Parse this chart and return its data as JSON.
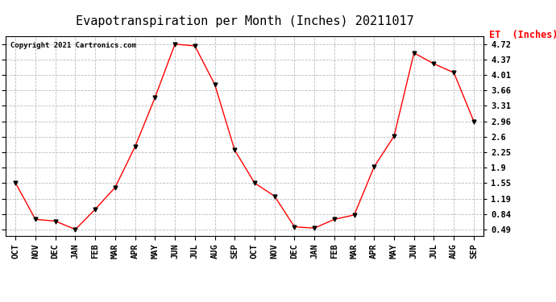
{
  "title": "Evapotranspiration per Month (Inches) 20211017",
  "copyright_text": "Copyright 2021 Cartronics.com",
  "legend_label": "ET  (Inches)",
  "x_labels": [
    "OCT",
    "NOV",
    "DEC",
    "JAN",
    "FEB",
    "MAR",
    "APR",
    "MAY",
    "JUN",
    "JUL",
    "AUG",
    "SEP",
    "OCT",
    "NOV",
    "DEC",
    "JAN",
    "FEB",
    "MAR",
    "APR",
    "MAY",
    "JUN",
    "JUL",
    "AUG",
    "SEP"
  ],
  "y_values": [
    1.55,
    0.72,
    0.68,
    0.49,
    0.95,
    1.45,
    2.38,
    3.5,
    4.72,
    4.68,
    3.8,
    2.3,
    1.55,
    1.25,
    0.55,
    0.52,
    0.72,
    0.82,
    1.92,
    2.62,
    4.52,
    4.27,
    4.07,
    2.96
  ],
  "y_ticks": [
    0.49,
    0.84,
    1.19,
    1.55,
    1.9,
    2.25,
    2.6,
    2.96,
    3.31,
    3.66,
    4.01,
    4.37,
    4.72
  ],
  "line_color": "red",
  "marker_color": "black",
  "grid_color": "#bbbbbb",
  "bg_color": "white",
  "title_fontsize": 11,
  "tick_fontsize": 7.5,
  "legend_color": "red",
  "copyright_color": "black"
}
